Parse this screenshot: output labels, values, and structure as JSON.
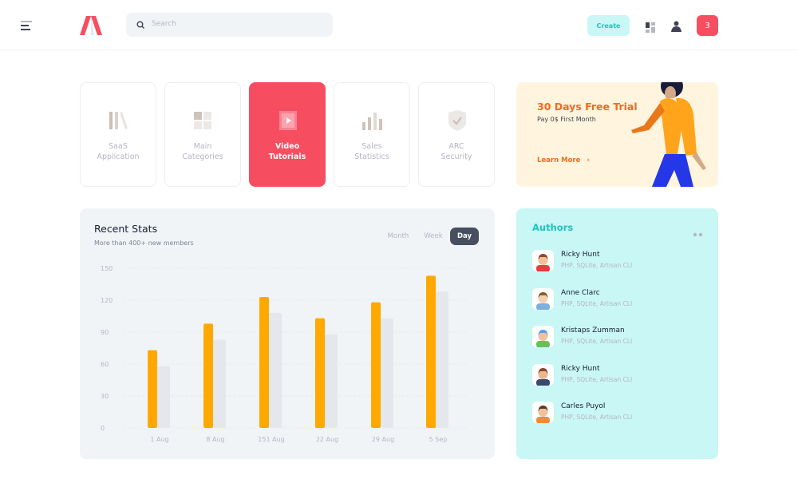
{
  "header": {
    "search_placeholder": "Search",
    "create_label": "Create",
    "notification_count": "3"
  },
  "tiles": [
    {
      "label": "SaaS\nApplication",
      "icon": "books-icon",
      "active": false
    },
    {
      "label": "Main\nCategories",
      "icon": "grid-icon",
      "active": false
    },
    {
      "label": "Video\nTutorials",
      "icon": "film-icon",
      "active": true
    },
    {
      "label": "Sales\nStatistics",
      "icon": "bar-chart-icon",
      "active": false
    },
    {
      "label": "ARC\nSecurity",
      "icon": "shield-check-icon",
      "active": false
    }
  ],
  "promo": {
    "title": "30 Days Free Trial",
    "subtitle": "Pay 0$ First Month",
    "link": "Learn More"
  },
  "stats": {
    "title": "Recent Stats",
    "subtitle": "More than 400+ new members",
    "tabs": [
      "Month",
      "Week",
      "Day"
    ],
    "active_tab": "Day"
  },
  "chart_data": {
    "type": "bar",
    "categories": [
      "1 Aug",
      "8 Aug",
      "151 Aug",
      "22 Aug",
      "29 Aug",
      "5 Sep"
    ],
    "series": [
      {
        "values": [
          73,
          98,
          123,
          103,
          118,
          143
        ],
        "color": "#ffa800"
      },
      {
        "values": [
          58,
          83,
          108,
          88,
          103,
          128
        ],
        "color": "#e4e8ed"
      }
    ],
    "yticks": [
      0,
      30,
      60,
      90,
      120,
      150
    ],
    "ylim": [
      0,
      150
    ],
    "grid": true
  },
  "authors": {
    "title": "Authors",
    "items": [
      {
        "name": "Ricky Hunt",
        "skills": "PHP, SQLite, Artisan CLI"
      },
      {
        "name": "Anne Clarc",
        "skills": "PHP, SQLite, Artisan CLI"
      },
      {
        "name": "Kristaps Zumman",
        "skills": "PHP, SQLite, Artisan CLI"
      },
      {
        "name": "Ricky Hunt",
        "skills": "PHP, SQLite, Artisan CLI"
      },
      {
        "name": "Carles Puyol",
        "skills": "PHP, SQLite, Artisan CLI"
      }
    ]
  },
  "colors": {
    "primary": "#f64e60",
    "accent": "#1bc5bd",
    "warning": "#ffa800",
    "promo_title": "#f26b1d"
  }
}
